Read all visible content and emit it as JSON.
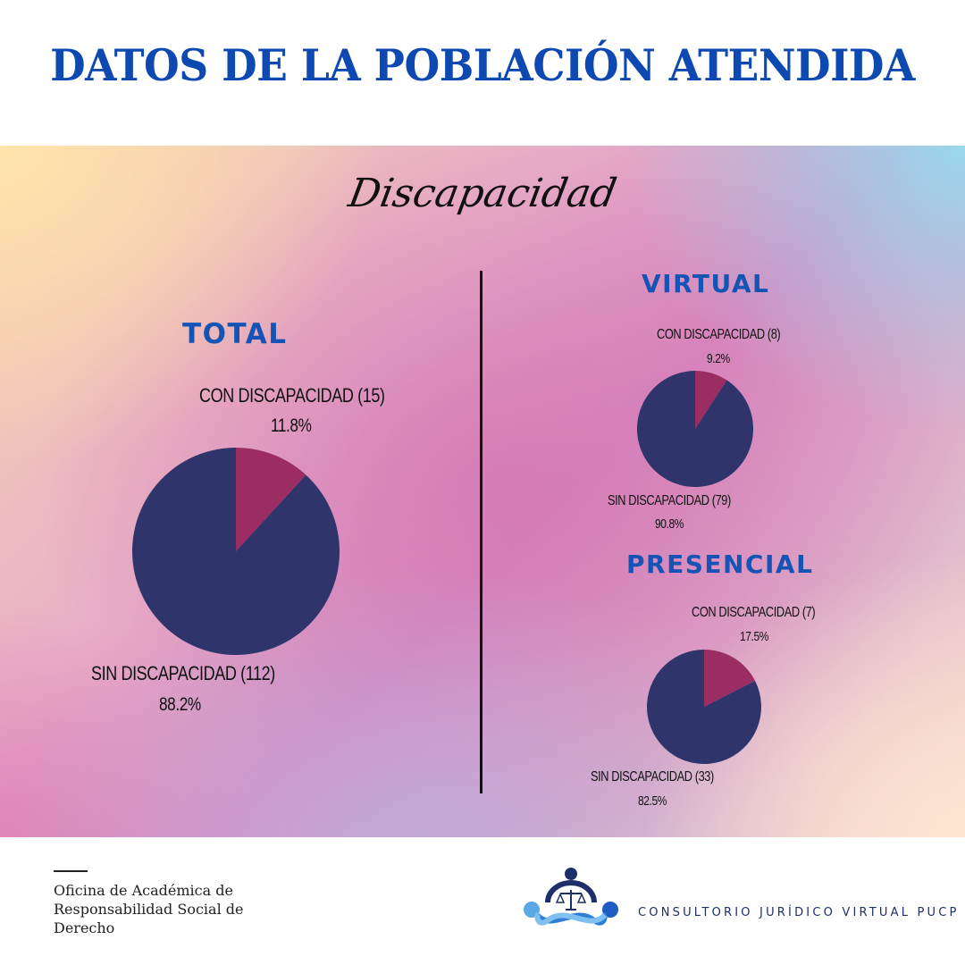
{
  "header": {
    "title": "DATOS DE LA POBLACIÓN ATENDIDA"
  },
  "section": {
    "title": "Discapacidad"
  },
  "colors": {
    "con": "#9b2d62",
    "sin": "#2f346b",
    "title_blue": "#0d49b0"
  },
  "chart_data": [
    {
      "type": "pie",
      "title": "TOTAL",
      "categories": [
        "CON DISCAPACIDAD",
        "SIN DISCAPACIDAD"
      ],
      "values": [
        15,
        112
      ],
      "percentages": [
        11.8,
        88.2
      ],
      "labels": [
        {
          "name": "CON DISCAPACIDAD (15)",
          "pct": "11.8%"
        },
        {
          "name": "SIN DISCAPACIDAD (112)",
          "pct": "88.2%"
        }
      ]
    },
    {
      "type": "pie",
      "title": "VIRTUAL",
      "categories": [
        "CON DISCAPACIDAD",
        "SIN DISCAPACIDAD"
      ],
      "values": [
        8,
        79
      ],
      "percentages": [
        9.2,
        90.8
      ],
      "labels": [
        {
          "name": "CON DISCAPACIDAD (8)",
          "pct": "9.2%"
        },
        {
          "name": "SIN DISCAPACIDAD (79)",
          "pct": "90.8%"
        }
      ]
    },
    {
      "type": "pie",
      "title": "PRESENCIAL",
      "categories": [
        "CON DISCAPACIDAD",
        "SIN DISCAPACIDAD"
      ],
      "values": [
        7,
        33
      ],
      "percentages": [
        17.5,
        82.5
      ],
      "labels": [
        {
          "name": "CON DISCAPACIDAD (7)",
          "pct": "17.5%"
        },
        {
          "name": "SIN DISCAPACIDAD (33)",
          "pct": "82.5%"
        }
      ]
    }
  ],
  "footer": {
    "office_lines": [
      "Oficina de Académica de",
      "Responsabilidad Social de",
      "Derecho"
    ],
    "brand": "CONSULTORIO JURÍDICO VIRTUAL PUCP"
  }
}
